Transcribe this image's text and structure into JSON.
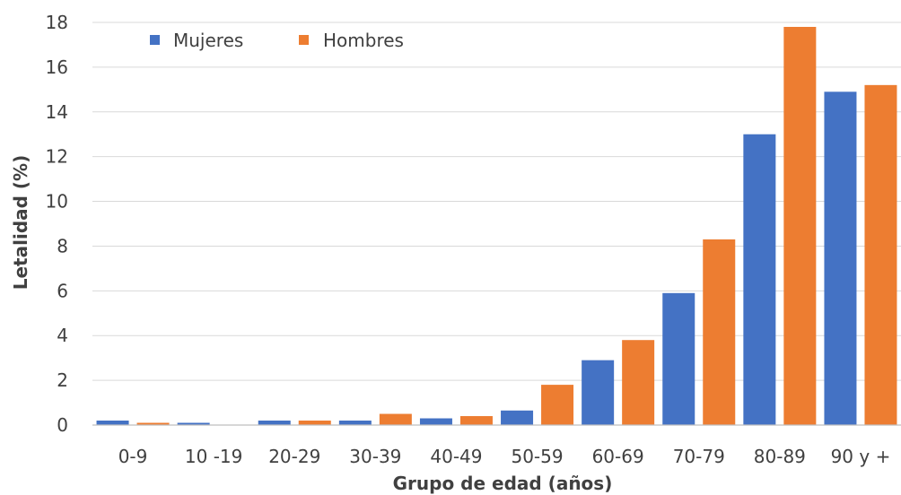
{
  "chart_data": {
    "type": "bar",
    "title": "",
    "xlabel": "Grupo de edad (años)",
    "ylabel": "Letalidad (%)",
    "ylim": [
      0,
      18
    ],
    "yticks": [
      "0",
      "2",
      "4",
      "6",
      "8",
      "10",
      "12",
      "14",
      "16",
      "18"
    ],
    "grid": true,
    "legend_position": "top-left",
    "categories": [
      "0-9",
      "10 -19",
      "20-29",
      "30-39",
      "40-49",
      "50-59",
      "60-69",
      "70-79",
      "80-89",
      "90 y +"
    ],
    "series": [
      {
        "name": "Mujeres",
        "color": "#4472c4",
        "values": [
          0.2,
          0.1,
          0.2,
          0.2,
          0.3,
          0.65,
          2.9,
          5.9,
          13.0,
          14.9
        ]
      },
      {
        "name": "Hombres",
        "color": "#ed7d31",
        "values": [
          0.1,
          0.0,
          0.2,
          0.5,
          0.4,
          1.8,
          3.8,
          8.3,
          17.8,
          15.2
        ]
      }
    ]
  }
}
